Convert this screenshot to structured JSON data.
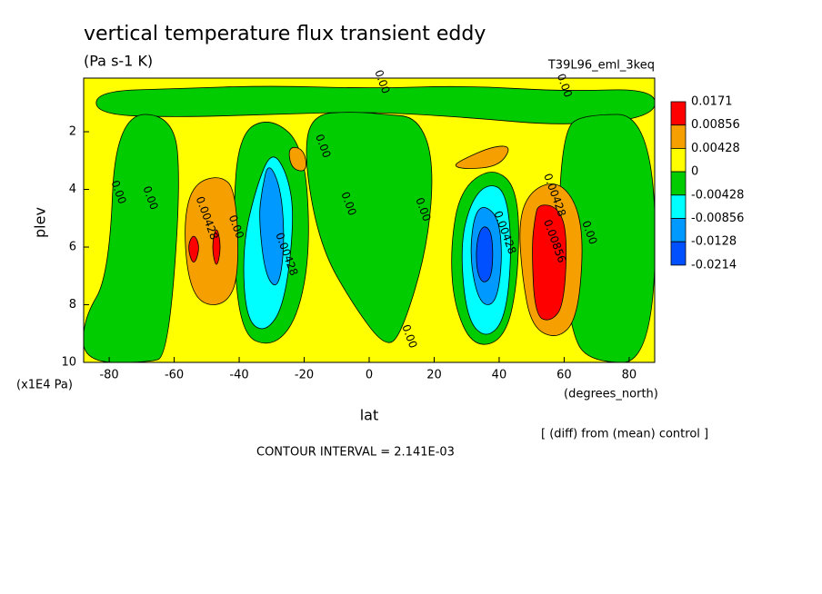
{
  "chart_data": {
    "type": "contour",
    "title": "vertical temperature flux transient eddy",
    "subtitle": "(Pa s-1 K)",
    "dataset": "T39L96_eml_3keq",
    "x_label": "lat",
    "x_units": "(degrees_north)",
    "y_label": "plev",
    "y_units": "(x1E4 Pa)",
    "note": "[ (diff) from (mean) control ]",
    "contour_interval": "CONTOUR INTERVAL = 2.141E-03",
    "xlim": [
      -87.86,
      87.86
    ],
    "ylim": [
      10,
      0.14
    ],
    "xticks": [
      -80,
      -60,
      -40,
      -20,
      0,
      20,
      40,
      60,
      80
    ],
    "yticks": [
      2,
      4,
      6,
      8,
      10
    ],
    "colorbar": {
      "levels": [
        0.0171,
        0.00856,
        0.00428,
        0,
        -0.00428,
        -0.00856,
        -0.0128,
        -0.0214
      ],
      "colors": [
        "#ff0000",
        "#f5a000",
        "#ffff00",
        "#00cc00",
        "#00ffff",
        "#0099ff",
        "#0050ff"
      ]
    },
    "regions": [
      {
        "fill": "#ffff00",
        "lat": [
          -87.86,
          87.86,
          87.86,
          -87.86
        ],
        "plev": [
          0.14,
          0.14,
          10,
          10
        ]
      },
      {
        "fill": "#00cc00",
        "lat": [
          -84,
          -60,
          -30,
          0,
          30,
          60,
          88,
          88,
          60,
          30,
          0,
          -30,
          -60,
          -84
        ],
        "plev": [
          0.6,
          0.5,
          0.4,
          0.5,
          0.4,
          0.6,
          0.5,
          1.5,
          1.8,
          1.5,
          1.3,
          1.4,
          1.5,
          1.4
        ]
      },
      {
        "fill": "#00cc00",
        "lat": [
          -78,
          -60,
          -58,
          -62,
          -68,
          -88,
          -88,
          -80
        ],
        "plev": [
          1.4,
          1.4,
          4,
          9.8,
          10,
          10,
          8.5,
          7
        ]
      },
      {
        "fill": "#00cc00",
        "lat": [
          -18,
          -5,
          5,
          15,
          20,
          18,
          10,
          5,
          -5,
          -15,
          -20
        ],
        "plev": [
          1.4,
          1.3,
          1.4,
          1.5,
          3,
          6,
          9,
          9.5,
          8,
          6,
          3
        ]
      },
      {
        "fill": "#00cc00",
        "lat": [
          65,
          88,
          88,
          68,
          62,
          58,
          60
        ],
        "plev": [
          1.4,
          1.4,
          10,
          10,
          9,
          5,
          2
        ]
      },
      {
        "fill": "#00cc00",
        "lat": [
          -40,
          -30,
          -20,
          -18,
          -22,
          -30,
          -40,
          -42
        ],
        "plev": [
          2,
          1.5,
          2.5,
          6,
          8.5,
          9.5,
          9,
          5
        ]
      },
      {
        "fill": "#00cc00",
        "lat": [
          28,
          38,
          46,
          46,
          42,
          32,
          26,
          25
        ],
        "plev": [
          4,
          3.2,
          4,
          7,
          9.2,
          9.5,
          8,
          6
        ]
      },
      {
        "fill": "#f5a000",
        "lat": [
          -54,
          -46,
          -41,
          -40,
          -44,
          -52,
          -56,
          -57
        ],
        "plev": [
          3.8,
          3.5,
          4,
          7,
          8,
          8,
          7,
          5
        ]
      },
      {
        "fill": "#ff0000",
        "lat": [
          -54,
          -52,
          -54,
          -56
        ],
        "plev": [
          5.5,
          6,
          6.7,
          6
        ]
      },
      {
        "fill": "#ff0000",
        "lat": [
          -47,
          -45.5,
          -47,
          -48.5
        ],
        "plev": [
          5.2,
          6,
          6.8,
          6
        ]
      },
      {
        "fill": "#f5a000",
        "lat": [
          -25,
          -20,
          -19,
          -24
        ],
        "plev": [
          2.5,
          2.6,
          3.4,
          3.3
        ]
      },
      {
        "fill": "#f5a000",
        "lat": [
          28,
          38,
          44,
          40,
          30,
          26
        ],
        "plev": [
          3,
          2.5,
          2.5,
          3.2,
          3.3,
          3.2
        ]
      },
      {
        "fill": "#f5a000",
        "lat": [
          50,
          58,
          64,
          66,
          64,
          58,
          50,
          47,
          46
        ],
        "plev": [
          4,
          3.7,
          4.5,
          6,
          8.5,
          9.2,
          8.8,
          7,
          5
        ]
      },
      {
        "fill": "#ff0000",
        "lat": [
          52,
          58,
          61,
          60,
          56,
          51,
          50,
          51
        ],
        "plev": [
          4.5,
          4.6,
          5.5,
          8,
          8.6,
          8.4,
          6,
          5
        ]
      },
      {
        "fill": "#00ffff",
        "lat": [
          -30,
          -25,
          -23,
          -26,
          -32,
          -38,
          -39,
          -35
        ],
        "plev": [
          2.6,
          3.5,
          5,
          8,
          9,
          8.5,
          6,
          4
        ]
      },
      {
        "fill": "#0099ff",
        "lat": [
          -31,
          -27,
          -26,
          -28,
          -32,
          -34,
          -33
        ],
        "plev": [
          3,
          4,
          6,
          7.5,
          7,
          5,
          4
        ]
      },
      {
        "fill": "#00ffff",
        "lat": [
          36,
          42,
          44,
          42,
          36,
          30,
          28,
          31
        ],
        "plev": [
          3.8,
          4,
          6,
          8.5,
          9.2,
          8.5,
          6,
          4.5
        ]
      },
      {
        "fill": "#0099ff",
        "lat": [
          35,
          40,
          41,
          39,
          34,
          31,
          32
        ],
        "plev": [
          4.5,
          5,
          6.5,
          8,
          8,
          6.5,
          5
        ]
      },
      {
        "fill": "#0050ff",
        "lat": [
          35,
          38,
          38,
          35,
          33,
          33
        ],
        "plev": [
          5.2,
          5.5,
          7,
          7.3,
          6.8,
          5.8
        ]
      }
    ],
    "contour_labels": [
      {
        "text": "0.00",
        "lat": 3.9,
        "plev": 0.27
      },
      {
        "text": "0.00",
        "lat": 60,
        "plev": 0.4
      },
      {
        "text": "0.00",
        "lat": -14.3,
        "plev": 2.5
      },
      {
        "text": "0.00",
        "lat": -77.2,
        "plev": 4.1
      },
      {
        "text": "0.00",
        "lat": -67.4,
        "plev": 4.3
      },
      {
        "text": "0.00428",
        "lat": -50,
        "plev": 5.0
      },
      {
        "text": "0.00",
        "lat": -41,
        "plev": 5.3
      },
      {
        "text": "0.00428",
        "lat": -25.5,
        "plev": 6.25
      },
      {
        "text": "0.00",
        "lat": -6.4,
        "plev": 4.5
      },
      {
        "text": "0.00",
        "lat": 16.5,
        "plev": 4.7
      },
      {
        "text": "0.00",
        "lat": 12.3,
        "plev": 9.1
      },
      {
        "text": "0.00428",
        "lat": 41.7,
        "plev": 5.5
      },
      {
        "text": "0.00856",
        "lat": 57,
        "plev": 5.8
      },
      {
        "text": "0.00428",
        "lat": 57,
        "plev": 4.2
      },
      {
        "text": "0.00",
        "lat": 67.7,
        "plev": 5.5
      }
    ]
  }
}
